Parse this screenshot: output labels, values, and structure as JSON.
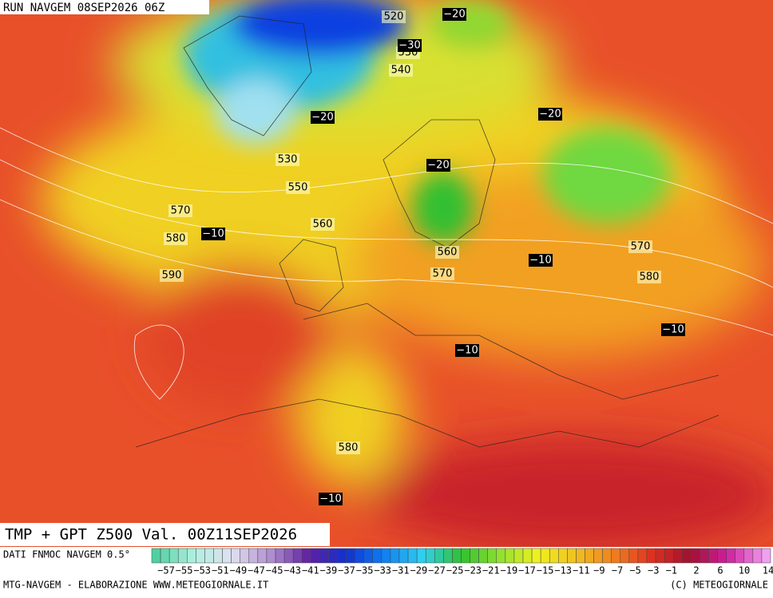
{
  "header": {
    "run": "RUN NAVGEM 08SEP2026 06Z"
  },
  "map": {
    "title": "TMP + GPT Z500 Val. 00Z11SEP2026",
    "height_labels": [
      "520",
      "530",
      "540",
      "530",
      "550",
      "570",
      "580",
      "590",
      "560",
      "560",
      "570",
      "570",
      "580",
      "580"
    ],
    "temp_labels": [
      "−20",
      "−30",
      "−20",
      "−20",
      "−20",
      "−10",
      "−10",
      "−10",
      "−10",
      "−10"
    ]
  },
  "colorbar": {
    "source": "DATI FNMOC NAVGEM 0.5°",
    "labels": [
      "−57",
      "−55",
      "−53",
      "−51",
      "−49",
      "−47",
      "−45",
      "−43",
      "−41",
      "−39",
      "−37",
      "−35",
      "−33",
      "−31",
      "−29",
      "−27",
      "−25",
      "−23",
      "−21",
      "−19",
      "−17",
      "−15",
      "−13",
      "−11",
      "−9",
      "−7",
      "−5",
      "−3",
      "−1",
      "2",
      "6",
      "10",
      "14"
    ]
  },
  "footer": {
    "left": "MTG-NAVGEM - ELABORAZIONE WWW.METEOGIORNALE.IT",
    "right": "(C) METEOGIORNALE"
  }
}
